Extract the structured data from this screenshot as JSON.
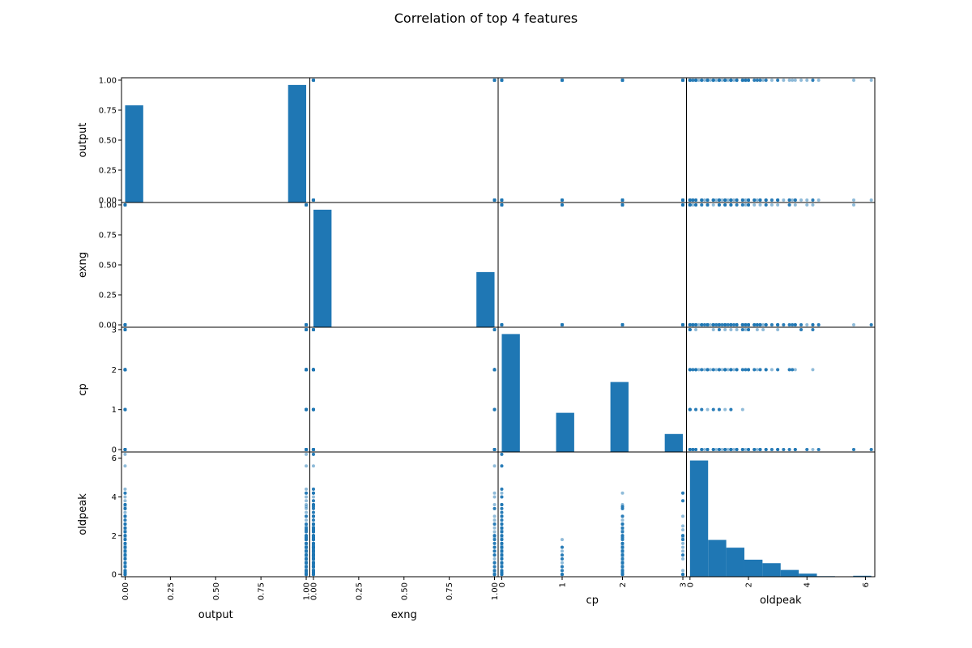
{
  "chart_data": {
    "type": "scatter_matrix",
    "title": "Correlation of top 4 features",
    "colors": {
      "marks": "#1f77b4"
    },
    "variables": [
      {
        "name": "output",
        "range": [
          -0.02,
          1.02
        ],
        "ticks": [
          0.0,
          0.25,
          0.5,
          0.75,
          1.0
        ],
        "tick_labels": [
          "0.00",
          "0.25",
          "0.50",
          "0.75",
          "1.00"
        ]
      },
      {
        "name": "exng",
        "range": [
          -0.02,
          1.02
        ],
        "ticks": [
          0.0,
          0.25,
          0.5,
          0.75,
          1.0
        ],
        "tick_labels": [
          "0.00",
          "0.25",
          "0.50",
          "0.75",
          "1.00"
        ]
      },
      {
        "name": "cp",
        "range": [
          -0.06,
          3.06
        ],
        "ticks": [
          0,
          1,
          2,
          3
        ],
        "tick_labels": [
          "0",
          "1",
          "2",
          "3"
        ]
      },
      {
        "name": "oldpeak",
        "range": [
          -0.12,
          6.32
        ],
        "ticks": [
          0,
          2,
          4,
          6
        ],
        "tick_labels": [
          "0",
          "2",
          "4",
          "6"
        ]
      }
    ],
    "histograms": {
      "output": {
        "bins": [
          {
            "x0": 0.0,
            "x1": 0.1,
            "height": 0.81
          },
          {
            "x0": 0.9,
            "x1": 1.0,
            "height": 0.98
          }
        ]
      },
      "exng": {
        "bins": [
          {
            "x0": 0.0,
            "x1": 0.1,
            "height": 0.98
          },
          {
            "x0": 0.9,
            "x1": 1.0,
            "height": 0.46
          }
        ]
      },
      "cp": {
        "bins": [
          {
            "x0": 0.0,
            "x1": 0.3,
            "height": 2.95
          },
          {
            "x0": 0.9,
            "x1": 1.2,
            "height": 0.98
          },
          {
            "x0": 1.8,
            "x1": 2.1,
            "height": 1.75
          },
          {
            "x0": 2.7,
            "x1": 3.0,
            "height": 0.45
          }
        ]
      },
      "oldpeak": {
        "bins": [
          {
            "x0": 0.0,
            "x1": 0.62,
            "height": 6.0
          },
          {
            "x0": 0.62,
            "x1": 1.24,
            "height": 1.9
          },
          {
            "x0": 1.24,
            "x1": 1.86,
            "height": 1.5
          },
          {
            "x0": 1.86,
            "x1": 2.48,
            "height": 0.88
          },
          {
            "x0": 2.48,
            "x1": 3.1,
            "height": 0.7
          },
          {
            "x0": 3.1,
            "x1": 3.72,
            "height": 0.35
          },
          {
            "x0": 3.72,
            "x1": 4.34,
            "height": 0.16
          },
          {
            "x0": 4.34,
            "x1": 4.96,
            "height": 0.03
          },
          {
            "x0": 4.96,
            "x1": 5.58,
            "height": 0.0
          },
          {
            "x0": 5.58,
            "x1": 6.2,
            "height": 0.05
          }
        ]
      }
    },
    "value_sets": {
      "output": [
        0,
        1
      ],
      "exng": [
        0,
        1
      ],
      "cp": [
        0,
        1,
        2,
        3
      ],
      "oldpeak": {
        "output_0_exng_0": [
          0,
          0.1,
          0.2,
          0.4,
          0.5,
          0.6,
          0.8,
          0.9,
          1.0,
          1.1,
          1.2,
          1.3,
          1.4,
          1.5,
          1.6,
          1.8,
          1.9,
          2.0,
          2.2,
          2.3,
          2.4,
          2.6,
          3.0,
          3.2,
          3.6,
          4.2,
          4.4,
          6.2
        ],
        "output_0_exng_1": [
          0,
          0.1,
          0.2,
          0.4,
          0.6,
          0.8,
          1.0,
          1.2,
          1.4,
          1.6,
          1.8,
          2.0,
          2.2,
          2.4,
          2.6,
          2.8,
          3.0,
          3.4,
          3.6,
          4.0,
          5.6
        ],
        "output_1_exng_0": [
          0,
          0.1,
          0.2,
          0.3,
          0.4,
          0.5,
          0.6,
          0.7,
          0.8,
          0.9,
          1.0,
          1.1,
          1.2,
          1.3,
          1.4,
          1.5,
          1.6,
          1.8,
          1.9,
          2.0,
          2.2,
          2.3,
          2.4,
          2.6,
          3.0,
          3.5,
          4.2
        ],
        "output_1_exng_1": [
          0,
          0.2,
          0.6,
          1.0,
          1.2,
          1.4,
          1.6,
          1.9,
          2.0
        ],
        "cp_0": [
          0,
          0.1,
          0.2,
          0.4,
          0.6,
          0.8,
          1.0,
          1.2,
          1.4,
          1.6,
          1.8,
          2.0,
          2.2,
          2.4,
          2.6,
          2.8,
          3.0,
          3.2,
          3.4,
          3.6,
          4.0,
          4.4,
          5.6,
          6.2
        ],
        "cp_1": [
          0,
          0.2,
          0.4,
          0.6,
          0.8,
          1.0,
          1.2,
          1.4,
          1.8
        ],
        "cp_2": [
          0,
          0.1,
          0.2,
          0.4,
          0.6,
          0.8,
          1.0,
          1.2,
          1.4,
          1.6,
          1.8,
          2.0,
          2.2,
          2.4,
          2.6,
          2.8,
          3.0,
          3.4,
          3.5,
          3.6
        ],
        "cp_3": [
          0,
          0.2,
          0.8,
          1.0,
          1.2,
          1.4,
          1.6,
          1.8,
          1.9,
          2.0,
          2.3,
          2.5,
          3.8,
          4.2
        ]
      }
    }
  }
}
